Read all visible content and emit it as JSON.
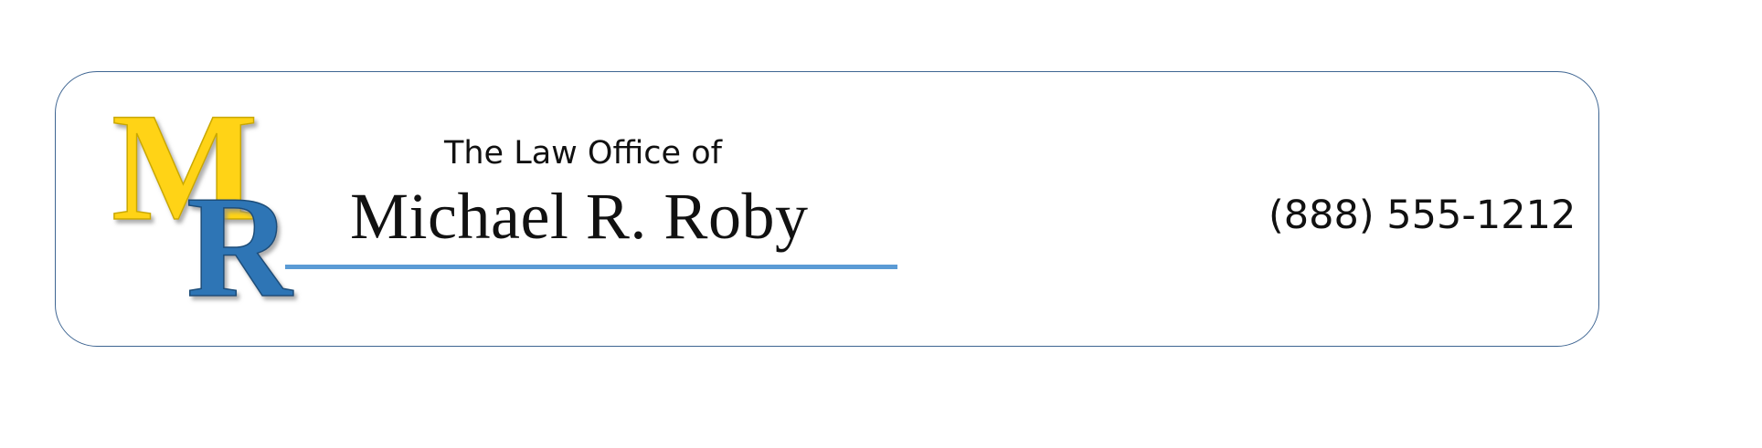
{
  "logo": {
    "letter_1": "M",
    "letter_2": "R",
    "letter_1_color": "#ffd319",
    "letter_2_color": "#2f75b5"
  },
  "header": {
    "prefix": "The Law Office of",
    "name": "Michael R. Roby"
  },
  "contact": {
    "phone": "(888) 555-1212"
  },
  "colors": {
    "border": "#3e6592",
    "underline": "#5b9bd5"
  }
}
